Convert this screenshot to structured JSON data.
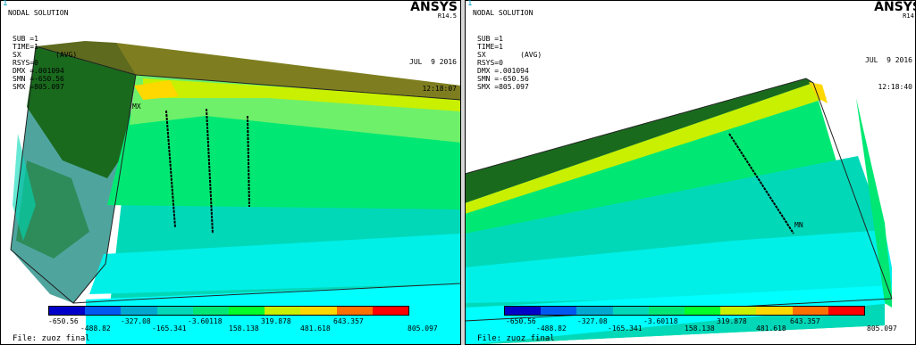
{
  "colors": [
    "#0000c8",
    "#0059f0",
    "#00a7d0",
    "#00d8b8",
    "#00e873",
    "#00ff28",
    "#c8f000",
    "#ffd800",
    "#ff7000",
    "#ff0000"
  ],
  "panels": [
    {
      "corner": "1",
      "title": "NODAL SOLUTION",
      "info": [
        "SUB =1",
        "TIME=1",
        "SX        (AVG)",
        "RSYS=0",
        "DMX =.001094",
        "SMN =-650.56",
        "SMX =805.097"
      ],
      "logo": "ANSYS",
      "rev": "R14.5",
      "date": "JUL  9 2016",
      "time": "12:18:07",
      "mx_label": "MX",
      "legend_top": [
        "-650.56",
        "-327.08",
        "-3.60118",
        "319.878",
        "643.357"
      ],
      "legend_bottom": [
        "-488.82",
        "-165.341",
        "158.138",
        "481.618",
        "805.097"
      ],
      "file": "File: zuoz final"
    },
    {
      "corner": "1",
      "title": "NODAL SOLUTION",
      "info": [
        "SUB =1",
        "TIME=1",
        "SX        (AVG)",
        "RSYS=0",
        "DMX =.001094",
        "SMN =-650.56",
        "SMX =805.097"
      ],
      "logo": "ANSYS",
      "rev": "R14.",
      "date": "JUL  9 2016",
      "time": "12:18:40",
      "mn_label": "MN",
      "legend_top": [
        "-650.56",
        "-327.08",
        "-3.60118",
        "319.878",
        "643.357"
      ],
      "legend_bottom": [
        "-488.82",
        "-165.341",
        "158.138",
        "481.618",
        "805.097"
      ],
      "file": "File: zuoz final"
    }
  ]
}
